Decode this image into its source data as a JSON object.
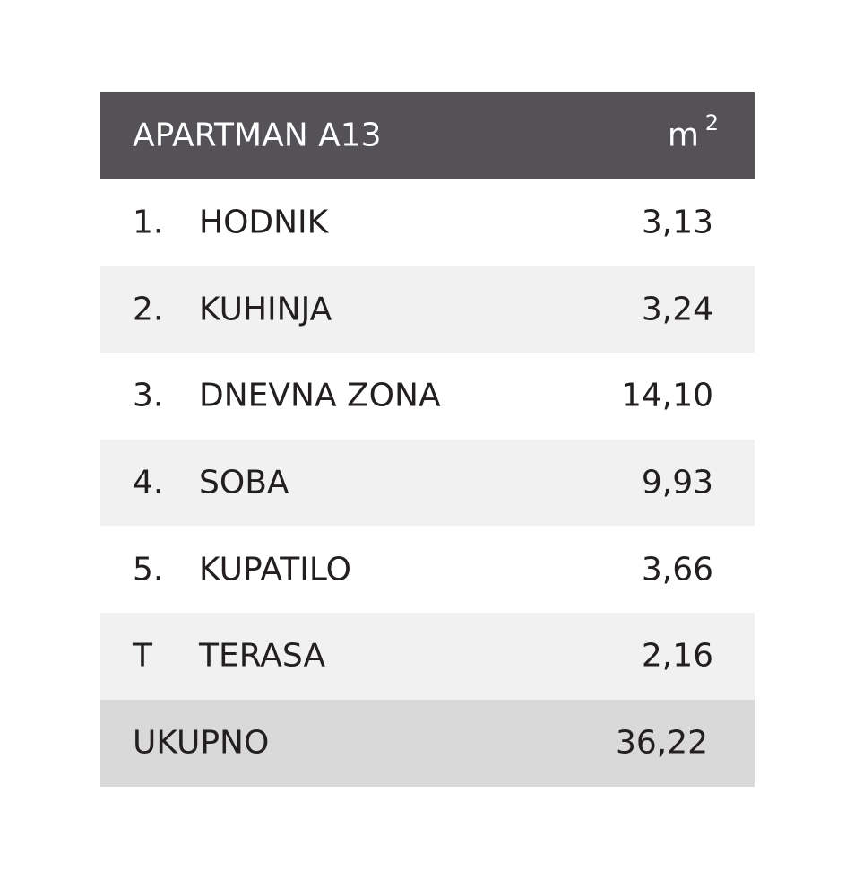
{
  "header": {
    "title": "APARTMAN A13",
    "unit": "m",
    "unit_exponent": "2"
  },
  "table": {
    "rows": [
      [
        "1.",
        "HODNIK",
        "3,13"
      ],
      [
        "2.",
        "KUHINJA",
        "3,24"
      ],
      [
        "3.",
        "DNEVNA ZONA",
        "14,10"
      ],
      [
        "4.",
        "SOBA",
        "9,93"
      ],
      [
        "5.",
        "KUPATILO",
        "3,66"
      ],
      [
        "T",
        "TERASA",
        "2,16"
      ]
    ]
  },
  "total": {
    "label": "UKUPNO",
    "value": "36,22"
  }
}
